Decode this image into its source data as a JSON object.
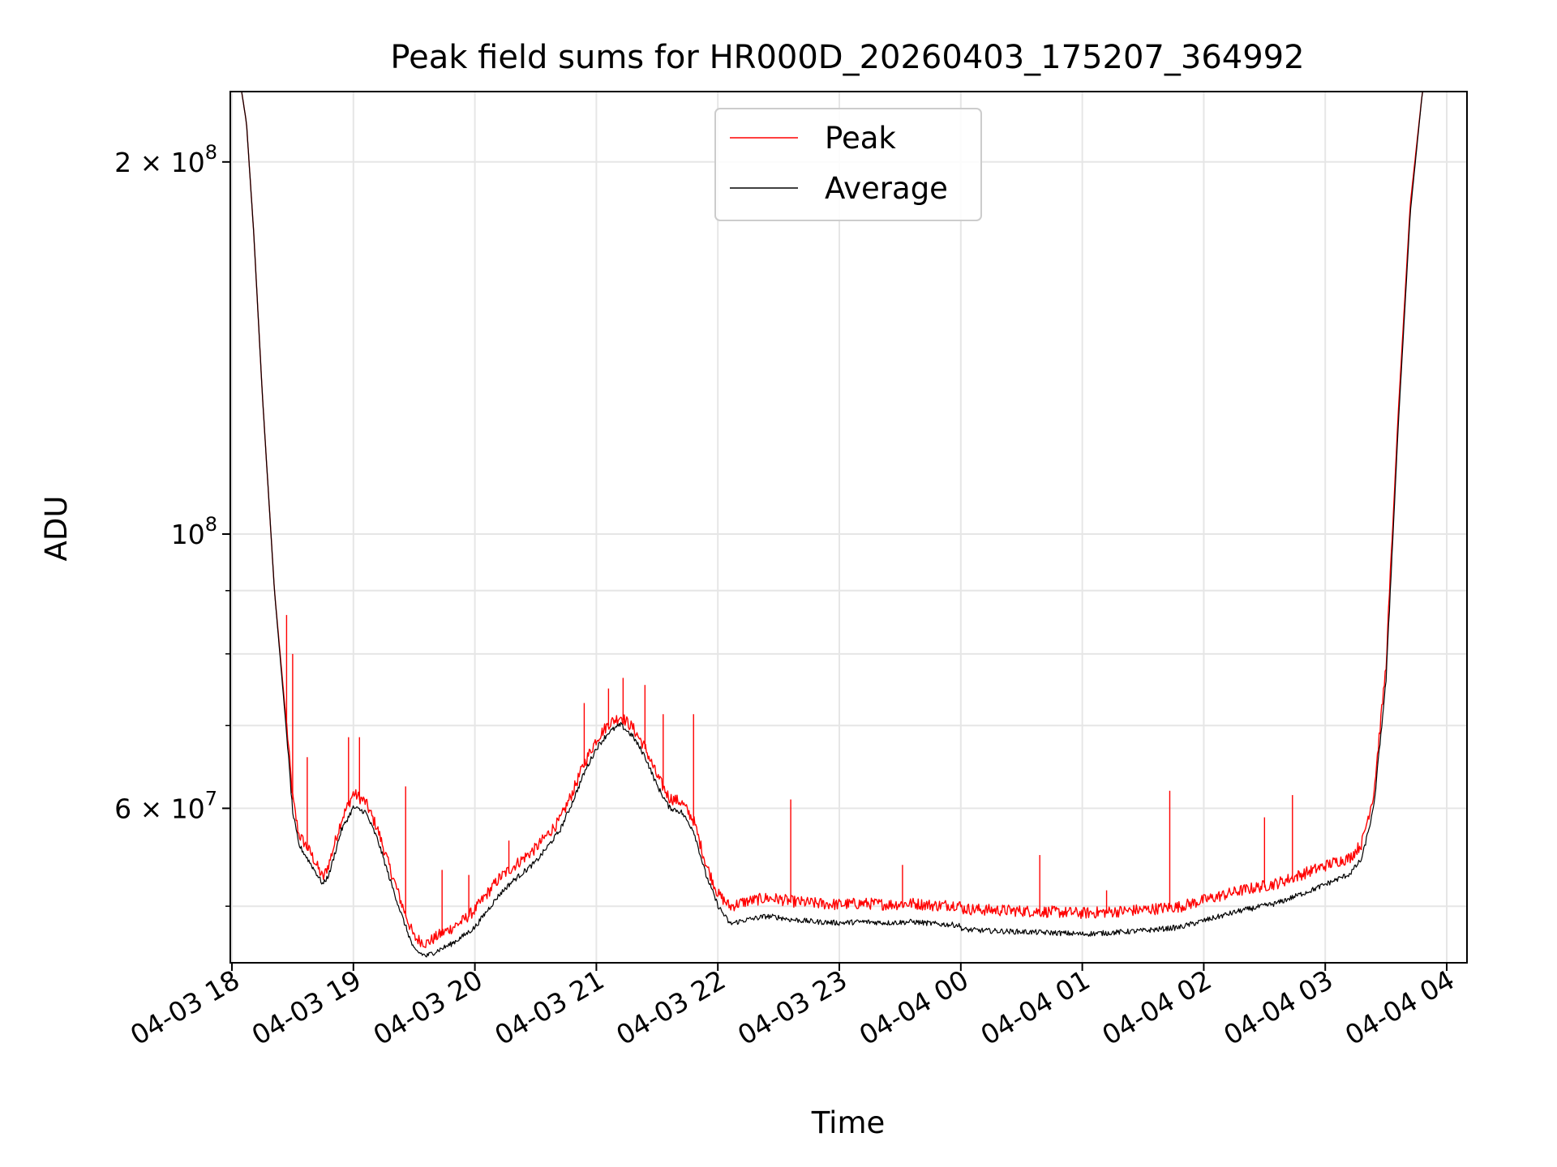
{
  "chart_data": {
    "type": "line",
    "title": "Peak field sums for HR000D_20260403_175207_364992",
    "xlabel": "Time",
    "ylabel": "ADU",
    "yscale": "log",
    "ylim": [
      45000000,
      228000000
    ],
    "xlim_hours": [
      -0.0133,
      10.1667
    ],
    "grid": true,
    "legend_position": "upper center",
    "x_ticks": [
      {
        "hours": 0,
        "label": "04-03 18"
      },
      {
        "hours": 1,
        "label": "04-03 19"
      },
      {
        "hours": 2,
        "label": "04-03 20"
      },
      {
        "hours": 3,
        "label": "04-03 21"
      },
      {
        "hours": 4,
        "label": "04-03 22"
      },
      {
        "hours": 5,
        "label": "04-03 23"
      },
      {
        "hours": 6,
        "label": "04-04 00"
      },
      {
        "hours": 7,
        "label": "04-04 01"
      },
      {
        "hours": 8,
        "label": "04-04 02"
      },
      {
        "hours": 9,
        "label": "04-04 03"
      },
      {
        "hours": 10,
        "label": "04-04 04"
      }
    ],
    "y_ticks_major": [
      {
        "value": 200000000,
        "mantissa": "2",
        "exponent": "8"
      },
      {
        "value": 100000000,
        "mantissa": "",
        "exponent": "8"
      },
      {
        "value": 60000000,
        "mantissa": "6",
        "exponent": "7"
      }
    ],
    "y_ticks_minor": [
      50000000,
      70000000,
      80000000,
      90000000
    ],
    "exp_base": "10",
    "times_sign": "×",
    "series": [
      {
        "name": "Peak",
        "color": "#ff0000",
        "x_hours": [
          0.08,
          0.12,
          0.18,
          0.25,
          0.35,
          0.45,
          0.5,
          0.55,
          0.65,
          0.75,
          0.8,
          0.9,
          1.0,
          1.1,
          1.2,
          1.3,
          1.4,
          1.5,
          1.6,
          1.7,
          1.8,
          1.9,
          2.0,
          2.1,
          2.2,
          2.3,
          2.4,
          2.5,
          2.6,
          2.7,
          2.8,
          2.9,
          3.0,
          3.1,
          3.2,
          3.3,
          3.4,
          3.5,
          3.6,
          3.7,
          3.8,
          3.9,
          4.0,
          4.1,
          4.2,
          4.3,
          4.4,
          4.5,
          4.6,
          4.8,
          5.0,
          5.2,
          5.4,
          5.6,
          5.8,
          5.98,
          6.02,
          6.2,
          6.5,
          6.8,
          7.0,
          7.2,
          7.5,
          7.8,
          8.0,
          8.3,
          8.6,
          8.9,
          9.1,
          9.2,
          9.3,
          9.4,
          9.5,
          9.6,
          9.7,
          9.8,
          9.9
        ],
        "y": [
          228000000,
          215000000,
          175000000,
          130000000,
          90000000,
          70000000,
          61000000,
          57000000,
          55000000,
          52500000,
          54000000,
          58500000,
          61500000,
          60500000,
          57500000,
          53500000,
          50000000,
          47000000,
          46500000,
          47200000,
          47800000,
          48500000,
          49500000,
          51000000,
          52500000,
          53500000,
          54500000,
          55500000,
          57000000,
          58500000,
          61500000,
          65000000,
          68000000,
          70000000,
          71000000,
          69500000,
          67000000,
          63500000,
          61000000,
          60500000,
          58500000,
          54000000,
          51000000,
          49800000,
          50200000,
          50400000,
          50600000,
          50500000,
          50300000,
          50100000,
          50000000,
          50100000,
          50000000,
          50100000,
          49900000,
          50000000,
          49600000,
          49500000,
          49400000,
          49300000,
          49200000,
          49300000,
          49500000,
          49800000,
          50400000,
          51300000,
          52000000,
          53300000,
          54200000,
          54500000,
          56000000,
          61500000,
          78000000,
          125000000,
          185000000,
          228000000,
          228000000
        ],
        "spikes": [
          {
            "hours": 0.45,
            "y": 86000000
          },
          {
            "hours": 0.5,
            "y": 80000000
          },
          {
            "hours": 0.62,
            "y": 66000000
          },
          {
            "hours": 0.96,
            "y": 68500000
          },
          {
            "hours": 1.05,
            "y": 68500000
          },
          {
            "hours": 1.43,
            "y": 62500000
          },
          {
            "hours": 1.73,
            "y": 53500000
          },
          {
            "hours": 1.95,
            "y": 53000000
          },
          {
            "hours": 2.28,
            "y": 56500000
          },
          {
            "hours": 2.9,
            "y": 73000000
          },
          {
            "hours": 3.1,
            "y": 75000000
          },
          {
            "hours": 3.22,
            "y": 76500000
          },
          {
            "hours": 3.4,
            "y": 75500000
          },
          {
            "hours": 3.55,
            "y": 71500000
          },
          {
            "hours": 3.8,
            "y": 71500000
          },
          {
            "hours": 4.6,
            "y": 61000000
          },
          {
            "hours": 5.52,
            "y": 54000000
          },
          {
            "hours": 6.65,
            "y": 55000000
          },
          {
            "hours": 7.2,
            "y": 51500000
          },
          {
            "hours": 7.72,
            "y": 62000000
          },
          {
            "hours": 8.5,
            "y": 59000000
          },
          {
            "hours": 8.73,
            "y": 61500000
          }
        ]
      },
      {
        "name": "Average",
        "color": "#000000",
        "x_hours": [
          0.08,
          0.12,
          0.18,
          0.25,
          0.35,
          0.45,
          0.5,
          0.55,
          0.65,
          0.75,
          0.8,
          0.9,
          1.0,
          1.1,
          1.2,
          1.3,
          1.4,
          1.5,
          1.6,
          1.7,
          1.8,
          1.9,
          2.0,
          2.1,
          2.2,
          2.3,
          2.4,
          2.5,
          2.6,
          2.7,
          2.8,
          2.9,
          3.0,
          3.1,
          3.2,
          3.3,
          3.4,
          3.5,
          3.6,
          3.7,
          3.8,
          3.9,
          4.0,
          4.1,
          4.2,
          4.3,
          4.4,
          4.5,
          4.6,
          4.8,
          5.0,
          5.2,
          5.4,
          5.6,
          5.8,
          5.98,
          6.02,
          6.2,
          6.5,
          6.8,
          7.0,
          7.2,
          7.5,
          7.8,
          8.0,
          8.3,
          8.6,
          8.9,
          9.1,
          9.2,
          9.3,
          9.4,
          9.5,
          9.6,
          9.7,
          9.8,
          9.9
        ],
        "y": [
          228000000,
          215000000,
          175000000,
          130000000,
          90000000,
          69000000,
          59500000,
          56000000,
          54000000,
          52000000,
          53000000,
          57500000,
          60000000,
          59500000,
          56500000,
          52500000,
          49000000,
          46000000,
          45500000,
          46000000,
          46500000,
          47200000,
          48000000,
          49500000,
          51000000,
          52200000,
          53200000,
          54200000,
          55800000,
          57500000,
          60500000,
          64000000,
          67000000,
          69000000,
          70000000,
          68500000,
          66000000,
          62500000,
          60000000,
          59500000,
          57500000,
          53000000,
          50000000,
          48300000,
          48600000,
          48800000,
          49000000,
          48900000,
          48700000,
          48500000,
          48400000,
          48500000,
          48400000,
          48500000,
          48300000,
          48200000,
          47800000,
          47700000,
          47600000,
          47500000,
          47400000,
          47500000,
          47700000,
          48000000,
          48600000,
          49500000,
          50200000,
          51500000,
          52500000,
          53000000,
          54500000,
          60000000,
          76000000,
          122000000,
          182000000,
          228000000,
          228000000
        ]
      }
    ]
  }
}
